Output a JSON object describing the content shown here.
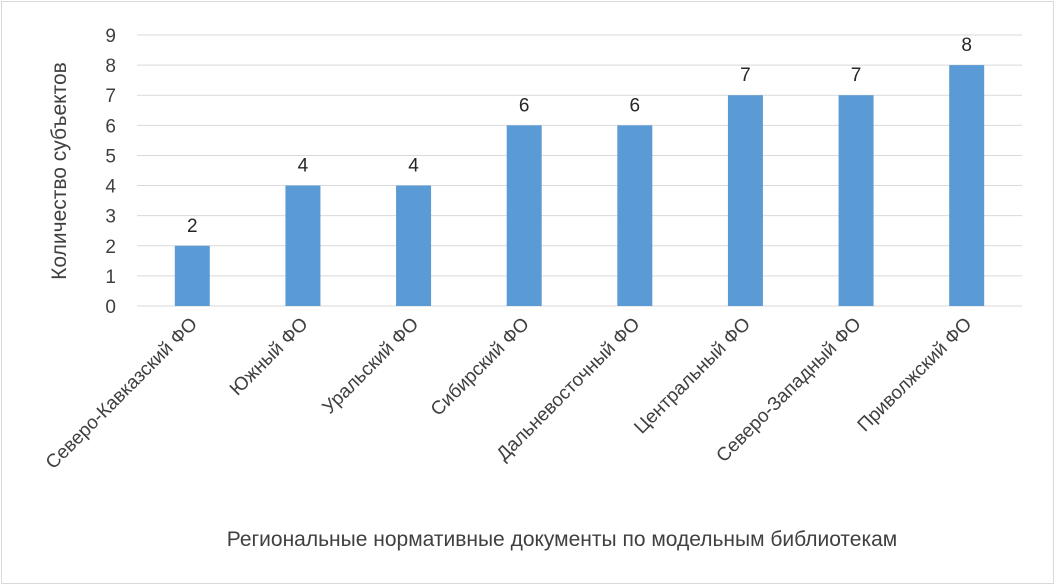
{
  "chart_data": {
    "type": "bar",
    "title": "",
    "xlabel": "Региональные нормативные документы по модельным библиотекам",
    "ylabel": "Количество субъектов",
    "categories": [
      "Северо-Кавказский ФО",
      "Южный ФО",
      "Уральский ФО",
      "Сибирский ФО",
      "Дальневосточный ФО",
      "Центральный ФО",
      "Северо-Западный ФО",
      "Приволжский ФО"
    ],
    "values": [
      2,
      4,
      4,
      6,
      6,
      7,
      7,
      8
    ],
    "ylim": [
      0,
      9
    ],
    "yticks": [
      0,
      1,
      2,
      3,
      4,
      5,
      6,
      7,
      8,
      9
    ],
    "grid": true,
    "legend": "none",
    "data_labels": true,
    "bar_color": "#5b9bd5",
    "grid_color": "#d9d9d9"
  }
}
